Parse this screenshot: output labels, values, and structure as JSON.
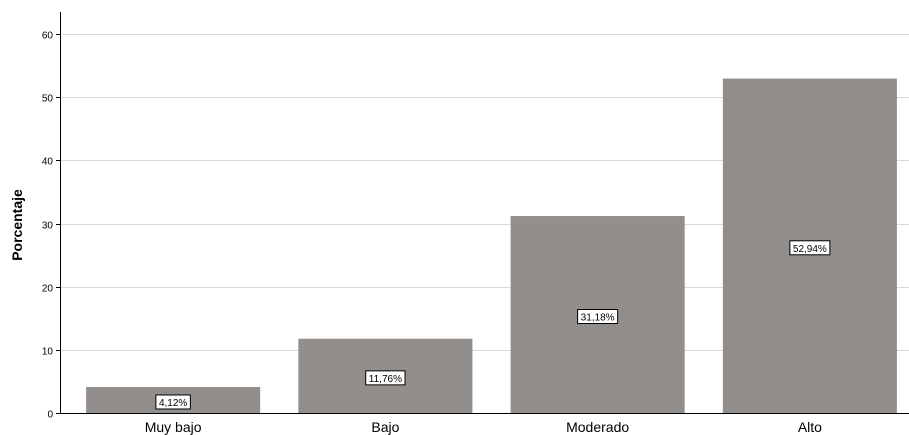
{
  "chart_data": {
    "type": "bar",
    "categories": [
      "Muy bajo",
      "Bajo",
      "Moderado",
      "Alto"
    ],
    "values": [
      4.12,
      11.76,
      31.18,
      52.94
    ],
    "data_labels": [
      "4,12%",
      "11,76%",
      "31,18%",
      "52,94%"
    ],
    "ylabel": "Porcentaje",
    "xlabel": "",
    "ylim": [
      0,
      60
    ],
    "yticks": [
      "0",
      "10",
      "20",
      "30",
      "40",
      "50",
      "60"
    ],
    "grid": "horizontal",
    "bar_color": "#918e8c",
    "grid_color": "#d9d9d9",
    "axis_color": "#000000"
  }
}
